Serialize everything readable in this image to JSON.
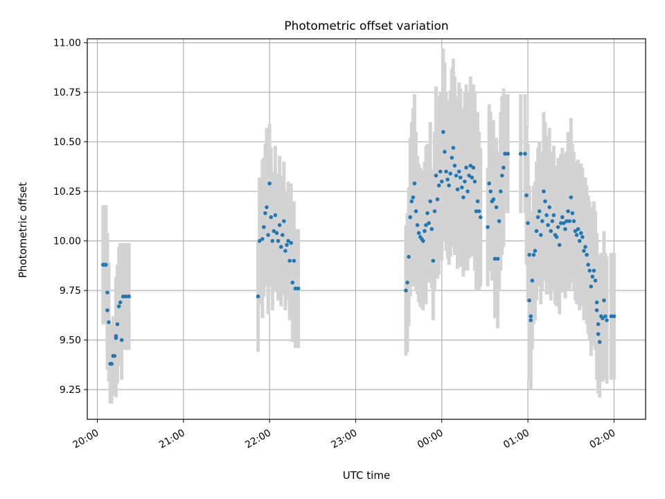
{
  "chart_data": {
    "type": "scatter",
    "title": "Photometric offset variation",
    "xlabel": "UTC time",
    "ylabel": "Photometric offset",
    "x_unit": "hours (UTC, 20:00 → 02:00 next day)",
    "xlim": [
      "19:53",
      "02:22"
    ],
    "ylim": [
      9.1,
      11.02
    ],
    "x_ticks": [
      "20:00",
      "21:00",
      "22:00",
      "23:00",
      "00:00",
      "01:00",
      "02:00"
    ],
    "y_ticks": [
      "9.25",
      "9.50",
      "9.75",
      "10.00",
      "10.25",
      "10.50",
      "10.75",
      "11.00"
    ],
    "grid": true,
    "colors": {
      "points": "#1f77b4",
      "errorbars": "#d3d3d3",
      "grid": "#b0b0b0"
    },
    "series": [
      {
        "values_format": "[x time, y offset, y error]",
        "values": [
          [
            "20:04",
            9.88,
            0.3
          ],
          [
            "20:05",
            9.88,
            0.3
          ],
          [
            "20:06",
            9.88,
            0.3
          ],
          [
            "20:07",
            9.74,
            0.3
          ],
          [
            "20:07",
            9.65,
            0.3
          ],
          [
            "20:08",
            9.59,
            0.3
          ],
          [
            "20:09",
            9.38,
            0.2
          ],
          [
            "20:10",
            9.38,
            0.2
          ],
          [
            "20:11",
            9.42,
            0.2
          ],
          [
            "20:12",
            9.42,
            0.2
          ],
          [
            "20:13",
            9.51,
            0.3
          ],
          [
            "20:13",
            9.52,
            0.3
          ],
          [
            "20:14",
            9.58,
            0.3
          ],
          [
            "20:15",
            9.67,
            0.3
          ],
          [
            "20:16",
            9.69,
            0.3
          ],
          [
            "20:17",
            9.5,
            0.2
          ],
          [
            "20:18",
            9.72,
            0.27
          ],
          [
            "20:20",
            9.72,
            0.27
          ],
          [
            "20:22",
            9.72,
            0.27
          ],
          [
            "21:52",
            9.72,
            0.28
          ],
          [
            "21:53",
            10.0,
            0.32
          ],
          [
            "21:55",
            10.01,
            0.4
          ],
          [
            "21:56",
            10.07,
            0.35
          ],
          [
            "21:57",
            10.14,
            0.35
          ],
          [
            "21:58",
            10.17,
            0.4
          ],
          [
            "21:59",
            10.03,
            0.4
          ],
          [
            "22:00",
            10.29,
            0.3
          ],
          [
            "22:01",
            10.12,
            0.35
          ],
          [
            "22:02",
            10.0,
            0.35
          ],
          [
            "22:03",
            10.05,
            0.3
          ],
          [
            "22:04",
            10.13,
            0.35
          ],
          [
            "22:05",
            10.04,
            0.3
          ],
          [
            "22:06",
            10.0,
            0.3
          ],
          [
            "22:07",
            10.08,
            0.35
          ],
          [
            "22:08",
            9.97,
            0.3
          ],
          [
            "22:09",
            10.03,
            0.3
          ],
          [
            "22:10",
            10.1,
            0.3
          ],
          [
            "22:11",
            9.95,
            0.3
          ],
          [
            "22:12",
            9.98,
            0.25
          ],
          [
            "22:13",
            10.0,
            0.3
          ],
          [
            "22:14",
            9.9,
            0.3
          ],
          [
            "22:15",
            9.99,
            0.3
          ],
          [
            "22:16",
            9.79,
            0.3
          ],
          [
            "22:17",
            9.9,
            0.3
          ],
          [
            "22:18",
            9.76,
            0.3
          ],
          [
            "22:20",
            9.76,
            0.3
          ],
          [
            "23:35",
            9.75,
            0.33
          ],
          [
            "23:36",
            9.79,
            0.35
          ],
          [
            "23:37",
            9.92,
            0.35
          ],
          [
            "23:38",
            10.12,
            0.4
          ],
          [
            "23:39",
            10.2,
            0.4
          ],
          [
            "23:40",
            10.22,
            0.45
          ],
          [
            "23:41",
            10.29,
            0.45
          ],
          [
            "23:42",
            10.15,
            0.4
          ],
          [
            "23:43",
            10.08,
            0.35
          ],
          [
            "23:44",
            10.04,
            0.35
          ],
          [
            "23:45",
            10.02,
            0.35
          ],
          [
            "23:46",
            10.01,
            0.35
          ],
          [
            "23:47",
            10.0,
            0.35
          ],
          [
            "23:48",
            10.05,
            0.35
          ],
          [
            "23:49",
            10.08,
            0.4
          ],
          [
            "23:50",
            10.14,
            0.35
          ],
          [
            "23:51",
            10.09,
            0.3
          ],
          [
            "23:52",
            10.2,
            0.4
          ],
          [
            "23:53",
            10.06,
            0.3
          ],
          [
            "23:54",
            9.9,
            0.3
          ],
          [
            "23:55",
            10.15,
            0.4
          ],
          [
            "23:56",
            10.33,
            0.45
          ],
          [
            "23:57",
            10.21,
            0.4
          ],
          [
            "23:58",
            10.28,
            0.45
          ],
          [
            "23:59",
            10.35,
            0.4
          ],
          [
            "00:00",
            10.3,
            0.4
          ],
          [
            "00:01",
            10.55,
            0.42
          ],
          [
            "00:02",
            10.45,
            0.45
          ],
          [
            "00:03",
            10.35,
            0.4
          ],
          [
            "00:04",
            10.31,
            0.4
          ],
          [
            "00:05",
            10.28,
            0.4
          ],
          [
            "00:06",
            10.34,
            0.42
          ],
          [
            "00:07",
            10.42,
            0.45
          ],
          [
            "00:08",
            10.47,
            0.45
          ],
          [
            "00:09",
            10.38,
            0.45
          ],
          [
            "00:10",
            10.33,
            0.4
          ],
          [
            "00:11",
            10.26,
            0.4
          ],
          [
            "00:12",
            10.35,
            0.45
          ],
          [
            "00:13",
            10.32,
            0.45
          ],
          [
            "00:14",
            10.27,
            0.4
          ],
          [
            "00:15",
            10.22,
            0.4
          ],
          [
            "00:16",
            10.3,
            0.45
          ],
          [
            "00:17",
            10.37,
            0.42
          ],
          [
            "00:18",
            10.25,
            0.4
          ],
          [
            "00:19",
            10.33,
            0.42
          ],
          [
            "00:20",
            10.38,
            0.45
          ],
          [
            "00:21",
            10.32,
            0.4
          ],
          [
            "00:22",
            10.37,
            0.42
          ],
          [
            "00:23",
            10.3,
            0.45
          ],
          [
            "00:24",
            10.15,
            0.4
          ],
          [
            "00:25",
            10.2,
            0.45
          ],
          [
            "00:26",
            10.15,
            0.4
          ],
          [
            "00:27",
            10.12,
            0.35
          ],
          [
            "00:32",
            10.07,
            0.3
          ],
          [
            "00:33",
            10.29,
            0.4
          ],
          [
            "00:34",
            10.25,
            0.4
          ],
          [
            "00:35",
            10.2,
            0.4
          ],
          [
            "00:36",
            10.21,
            0.4
          ],
          [
            "00:37",
            9.91,
            0.3
          ],
          [
            "00:38",
            10.17,
            0.35
          ],
          [
            "00:39",
            9.91,
            0.35
          ],
          [
            "00:40",
            10.1,
            0.35
          ],
          [
            "00:41",
            10.25,
            0.4
          ],
          [
            "00:42",
            10.33,
            0.4
          ],
          [
            "00:43",
            10.37,
            0.4
          ],
          [
            "00:44",
            10.44,
            0.3
          ],
          [
            "00:46",
            10.44,
            0.3
          ],
          [
            "00:55",
            10.44,
            0.3
          ],
          [
            "00:58",
            10.44,
            0.3
          ],
          [
            "00:59",
            10.23,
            0.35
          ],
          [
            "01:00",
            10.09,
            0.4
          ],
          [
            "01:01",
            9.93,
            0.35
          ],
          [
            "01:01",
            9.7,
            0.4
          ],
          [
            "01:02",
            9.62,
            0.35
          ],
          [
            "01:02",
            9.6,
            0.35
          ],
          [
            "01:03",
            9.8,
            0.35
          ],
          [
            "01:04",
            9.93,
            0.35
          ],
          [
            "01:05",
            9.95,
            0.35
          ],
          [
            "01:06",
            10.05,
            0.35
          ],
          [
            "01:07",
            10.12,
            0.35
          ],
          [
            "01:08",
            10.15,
            0.35
          ],
          [
            "01:09",
            10.03,
            0.35
          ],
          [
            "01:10",
            10.1,
            0.35
          ],
          [
            "01:11",
            10.25,
            0.4
          ],
          [
            "01:12",
            10.2,
            0.4
          ],
          [
            "01:13",
            10.13,
            0.4
          ],
          [
            "01:14",
            10.08,
            0.35
          ],
          [
            "01:15",
            10.17,
            0.4
          ],
          [
            "01:16",
            10.05,
            0.35
          ],
          [
            "01:17",
            10.1,
            0.35
          ],
          [
            "01:18",
            10.13,
            0.35
          ],
          [
            "01:19",
            10.03,
            0.35
          ],
          [
            "01:20",
            10.02,
            0.35
          ],
          [
            "01:21",
            10.07,
            0.35
          ],
          [
            "01:22",
            9.98,
            0.35
          ],
          [
            "01:23",
            10.09,
            0.35
          ],
          [
            "01:24",
            10.12,
            0.35
          ],
          [
            "01:25",
            10.09,
            0.35
          ],
          [
            "01:26",
            10.06,
            0.35
          ],
          [
            "01:27",
            10.1,
            0.35
          ],
          [
            "01:28",
            10.15,
            0.4
          ],
          [
            "01:29",
            10.1,
            0.35
          ],
          [
            "01:30",
            10.22,
            0.4
          ],
          [
            "01:31",
            10.14,
            0.35
          ],
          [
            "01:32",
            10.1,
            0.35
          ],
          [
            "01:33",
            10.05,
            0.35
          ],
          [
            "01:34",
            10.03,
            0.35
          ],
          [
            "01:35",
            10.06,
            0.35
          ],
          [
            "01:36",
            10.0,
            0.35
          ],
          [
            "01:37",
            10.04,
            0.35
          ],
          [
            "01:38",
            10.02,
            0.35
          ],
          [
            "01:39",
            9.95,
            0.35
          ],
          [
            "01:40",
            9.97,
            0.35
          ],
          [
            "01:41",
            9.93,
            0.35
          ],
          [
            "01:42",
            9.88,
            0.35
          ],
          [
            "01:43",
            9.85,
            0.35
          ],
          [
            "01:44",
            9.77,
            0.35
          ],
          [
            "01:45",
            9.82,
            0.35
          ],
          [
            "01:46",
            9.85,
            0.35
          ],
          [
            "01:47",
            9.8,
            0.35
          ],
          [
            "01:48",
            9.69,
            0.35
          ],
          [
            "01:48",
            9.65,
            0.35
          ],
          [
            "01:49",
            9.58,
            0.35
          ],
          [
            "01:49",
            9.53,
            0.3
          ],
          [
            "01:50",
            9.49,
            0.28
          ],
          [
            "01:51",
            9.62,
            0.32
          ],
          [
            "01:52",
            9.61,
            0.32
          ],
          [
            "01:53",
            9.7,
            0.35
          ],
          [
            "01:54",
            9.62,
            0.32
          ],
          [
            "01:55",
            9.6,
            0.32
          ],
          [
            "01:58",
            9.62,
            0.32
          ],
          [
            "02:00",
            9.62,
            0.32
          ]
        ]
      }
    ]
  }
}
